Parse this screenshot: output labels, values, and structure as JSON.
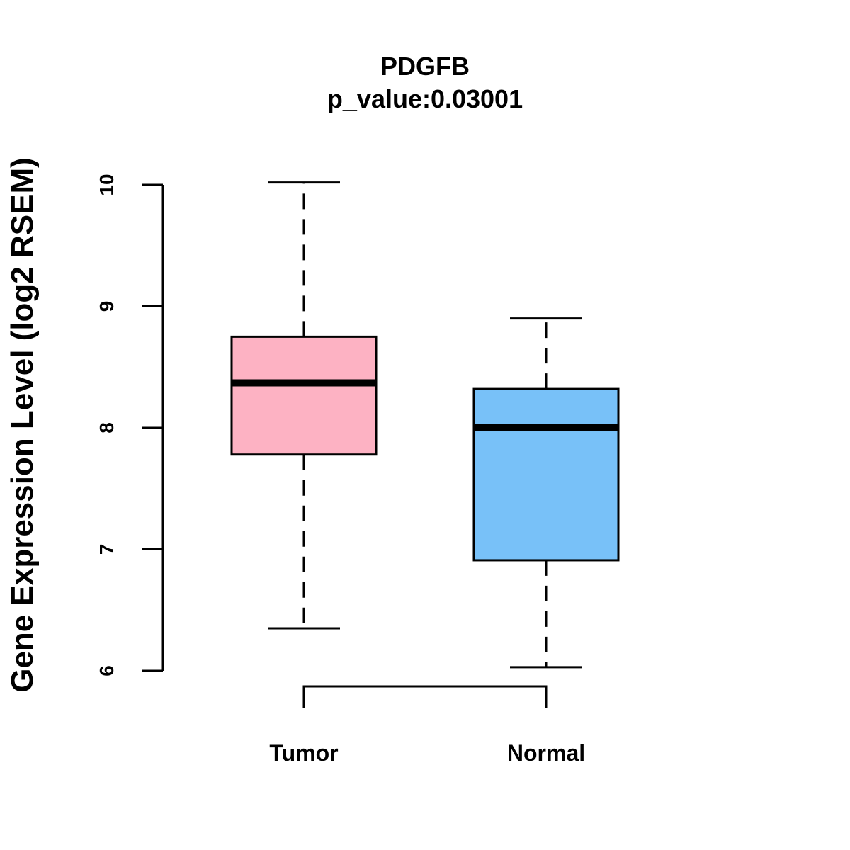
{
  "chart_data": {
    "type": "box",
    "title": "PDGFB",
    "subtitle": "p_value:0.03001",
    "xlabel": "",
    "ylabel": "Gene Expression Level (log2 RSEM)",
    "ylim": [
      6,
      10
    ],
    "yticks": [
      6,
      7,
      8,
      9,
      10
    ],
    "categories": [
      "Tumor",
      "Normal"
    ],
    "boxes": [
      {
        "name": "Tumor",
        "min": 6.35,
        "q1": 7.78,
        "median": 8.37,
        "q3": 8.75,
        "max": 10.02,
        "color": "#FDB2C3"
      },
      {
        "name": "Normal",
        "min": 6.03,
        "q1": 6.91,
        "median": 8.0,
        "q3": 8.32,
        "max": 8.9,
        "color": "#78C1F8"
      }
    ],
    "comparison_bracket": [
      "Tumor",
      "Normal"
    ]
  }
}
